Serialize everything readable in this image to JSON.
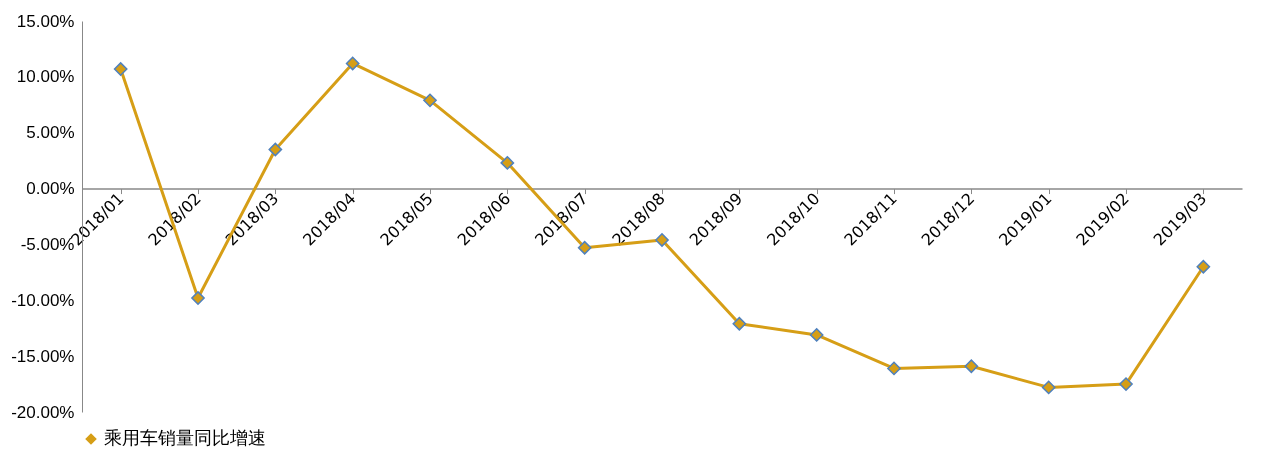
{
  "chart_data": {
    "type": "line",
    "categories": [
      "2018/01",
      "2018/02",
      "2018/03",
      "2018/04",
      "2018/05",
      "2018/06",
      "2018/07",
      "2018/08",
      "2018/09",
      "2018/10",
      "2018/11",
      "2018/12",
      "2019/01",
      "2019/02",
      "2019/03"
    ],
    "series": [
      {
        "name": "乘用车销量同比增速",
        "color": "#d69e16",
        "values": [
          10.7,
          -9.8,
          3.5,
          11.2,
          7.9,
          2.3,
          -5.3,
          -4.6,
          -12.1,
          -13.1,
          -16.1,
          -15.9,
          -17.8,
          -17.5,
          -7.0
        ]
      }
    ],
    "ylim": [
      -20,
      15
    ],
    "yticks": [
      {
        "value": -20,
        "label": "-20.00%"
      },
      {
        "value": -15,
        "label": "-15.00%"
      },
      {
        "value": -10,
        "label": "-10.00%"
      },
      {
        "value": -5,
        "label": "-5.00%"
      },
      {
        "value": 0,
        "label": "0.00%"
      },
      {
        "value": 5,
        "label": "5.00%"
      },
      {
        "value": 10,
        "label": "10.00%"
      },
      {
        "value": 15,
        "label": "15.00%"
      }
    ],
    "grid": false,
    "legend": "bottom",
    "marker": "diamond",
    "line_style": "solid"
  }
}
